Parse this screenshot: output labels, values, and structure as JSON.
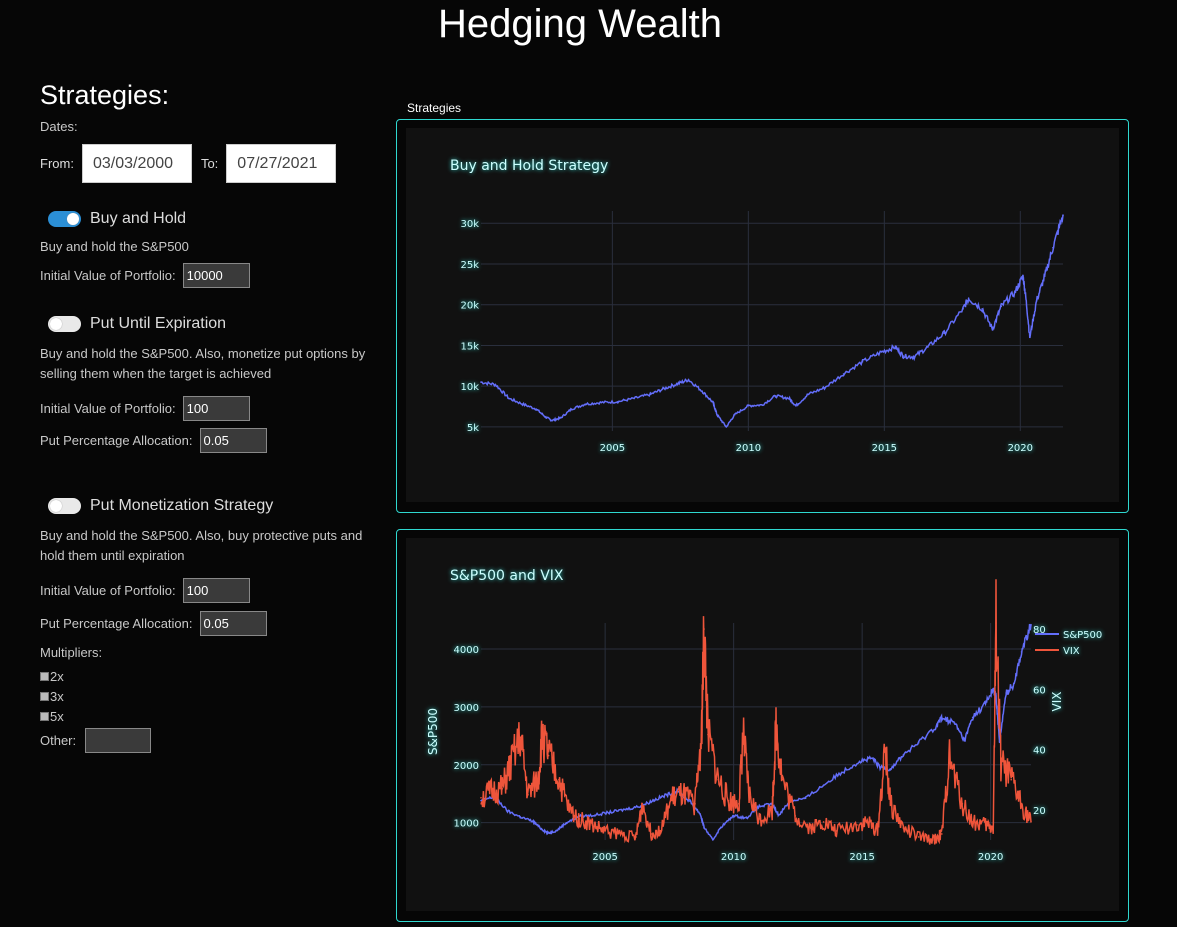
{
  "app_title": "Hedging Wealth",
  "sidebar": {
    "heading": "Strategies:",
    "dates_label": "Dates:",
    "from_label": "From:",
    "from_value": "03/03/2000",
    "to_label": "To:",
    "to_value": "07/27/2021",
    "strategies": [
      {
        "name": "Buy and Hold",
        "enabled": true,
        "description": "Buy and hold the S&P500",
        "initial_label": "Initial Value of Portfolio:",
        "initial_value": "10000"
      },
      {
        "name": "Put Until Expiration",
        "enabled": false,
        "description": "Buy and hold the S&P500. Also, monetize put options by selling them when the target is achieved",
        "initial_label": "Initial Value of Portfolio:",
        "initial_value": "100",
        "allocation_label": "Put Percentage Allocation:",
        "allocation_value": "0.05"
      },
      {
        "name": "Put Monetization Strategy",
        "enabled": false,
        "description": "Buy and hold the S&P500. Also, buy protective puts and hold them until expiration",
        "initial_label": "Initial Value of Portfolio:",
        "initial_value": "100",
        "allocation_label": "Put Percentage Allocation:",
        "allocation_value": "0.05",
        "multipliers_label": "Multipliers:",
        "multipliers": [
          "2x",
          "3x",
          "5x"
        ],
        "other_label": "Other:"
      }
    ]
  },
  "charts_section_title": "Strategies",
  "colors": {
    "accent": "#2fd8d0",
    "sp500": "#636efa",
    "vix": "#ef553b",
    "toggle_on": "#2b8fd6"
  },
  "chart_data": [
    {
      "type": "line",
      "title": "Buy and Hold Strategy",
      "xlabel": "",
      "ylabel": "",
      "xlim": [
        2000.17,
        2021.57
      ],
      "ylim": [
        4500,
        31500
      ],
      "x_ticks": [
        2005,
        2010,
        2015,
        2020
      ],
      "y_ticks": [
        5000,
        10000,
        15000,
        20000,
        25000,
        30000
      ],
      "y_tick_labels": [
        "5k",
        "10k",
        "15k",
        "20k",
        "25k",
        "30k"
      ],
      "series": [
        {
          "x": [
            2000.17,
            2000.7,
            2001.2,
            2001.7,
            2002.2,
            2002.55,
            2002.78,
            2003.1,
            2003.5,
            2004.0,
            2004.6,
            2005.2,
            2005.8,
            2006.4,
            2006.9,
            2007.4,
            2007.8,
            2008.3,
            2008.7,
            2008.85,
            2009.19,
            2009.5,
            2010.0,
            2010.5,
            2011.0,
            2011.5,
            2011.75,
            2012.2,
            2012.8,
            2013.5,
            2014.2,
            2014.9,
            2015.4,
            2015.7,
            2016.1,
            2016.6,
            2017.2,
            2017.9,
            2018.1,
            2018.6,
            2018.98,
            2019.3,
            2019.8,
            2020.1,
            2020.2,
            2020.35,
            2020.6,
            2020.9,
            2021.2,
            2021.57
          ],
          "values": [
            10500,
            10200,
            8500,
            7800,
            7200,
            6200,
            5800,
            6100,
            7200,
            7800,
            8000,
            8100,
            8500,
            9000,
            9700,
            10300,
            10800,
            9400,
            8000,
            6500,
            5000,
            6500,
            7600,
            7700,
            8800,
            8500,
            7600,
            9000,
            9800,
            11500,
            13000,
            14200,
            14800,
            13700,
            13600,
            14800,
            16500,
            19500,
            20800,
            19500,
            17000,
            19800,
            21500,
            23500,
            21000,
            16000,
            20500,
            23500,
            27000,
            31000
          ]
        }
      ]
    },
    {
      "type": "line",
      "title": "S&P500 and VIX",
      "xlabel": "",
      "ylabel": "S&P500",
      "y2label": "VIX",
      "xlim": [
        2000.17,
        2021.57
      ],
      "ylim": [
        700,
        4450
      ],
      "y2lim": [
        10,
        82
      ],
      "x_ticks": [
        2005,
        2010,
        2015,
        2020
      ],
      "y_ticks": [
        1000,
        2000,
        3000,
        4000
      ],
      "y2_ticks": [
        20,
        40,
        60,
        80
      ],
      "legend": "top-right",
      "series": [
        {
          "name": "S&P500",
          "axis": "y",
          "x": [
            2000.17,
            2000.7,
            2001.2,
            2001.7,
            2002.2,
            2002.55,
            2002.78,
            2003.1,
            2003.5,
            2004.0,
            2004.6,
            2005.2,
            2005.8,
            2006.4,
            2006.9,
            2007.4,
            2007.8,
            2008.3,
            2008.7,
            2008.85,
            2009.19,
            2009.5,
            2010.0,
            2010.5,
            2011.0,
            2011.5,
            2011.75,
            2012.2,
            2012.8,
            2013.5,
            2014.2,
            2014.9,
            2015.4,
            2015.7,
            2016.1,
            2016.6,
            2017.2,
            2017.9,
            2018.1,
            2018.6,
            2018.98,
            2019.3,
            2019.8,
            2020.1,
            2020.2,
            2020.35,
            2020.6,
            2020.9,
            2021.2,
            2021.57
          ],
          "values": [
            1380,
            1450,
            1200,
            1100,
            1020,
            880,
            820,
            860,
            1000,
            1110,
            1130,
            1180,
            1230,
            1290,
            1390,
            1480,
            1540,
            1370,
            1150,
            920,
            700,
            920,
            1120,
            1080,
            1280,
            1320,
            1130,
            1380,
            1420,
            1650,
            1870,
            2060,
            2110,
            1950,
            1930,
            2170,
            2380,
            2680,
            2820,
            2720,
            2420,
            2820,
            3060,
            3300,
            3200,
            2400,
            3240,
            3400,
            3950,
            4420
          ]
        },
        {
          "name": "VIX",
          "axis": "y2",
          "x": [
            2000.17,
            2000.6,
            2001.0,
            2001.3,
            2001.7,
            2002.0,
            2002.4,
            2002.55,
            2002.8,
            2003.2,
            2003.6,
            2004.0,
            2004.5,
            2005.0,
            2005.6,
            2006.2,
            2006.45,
            2006.8,
            2007.2,
            2007.6,
            2008.0,
            2008.5,
            2008.75,
            2008.85,
            2009.0,
            2009.4,
            2009.8,
            2010.2,
            2010.37,
            2010.6,
            2011.0,
            2011.5,
            2011.65,
            2011.9,
            2012.4,
            2013.0,
            2013.5,
            2014.0,
            2014.8,
            2015.2,
            2015.6,
            2015.9,
            2016.1,
            2016.6,
            2017.2,
            2017.8,
            2018.1,
            2018.4,
            2018.9,
            2019.3,
            2019.8,
            2020.1,
            2020.21,
            2020.4,
            2020.8,
            2021.2,
            2021.57
          ],
          "values": [
            24,
            26,
            27,
            34,
            44,
            25,
            30,
            45,
            38,
            30,
            20,
            17,
            15,
            13,
            12,
            11,
            22,
            12,
            14,
            24,
            25,
            22,
            45,
            80,
            45,
            30,
            23,
            22,
            45,
            25,
            17,
            20,
            48,
            30,
            18,
            14,
            16,
            13,
            15,
            16,
            13,
            40,
            22,
            14,
            11,
            10,
            12,
            37,
            22,
            16,
            15,
            14,
            82,
            35,
            30,
            22,
            16
          ]
        }
      ]
    }
  ]
}
